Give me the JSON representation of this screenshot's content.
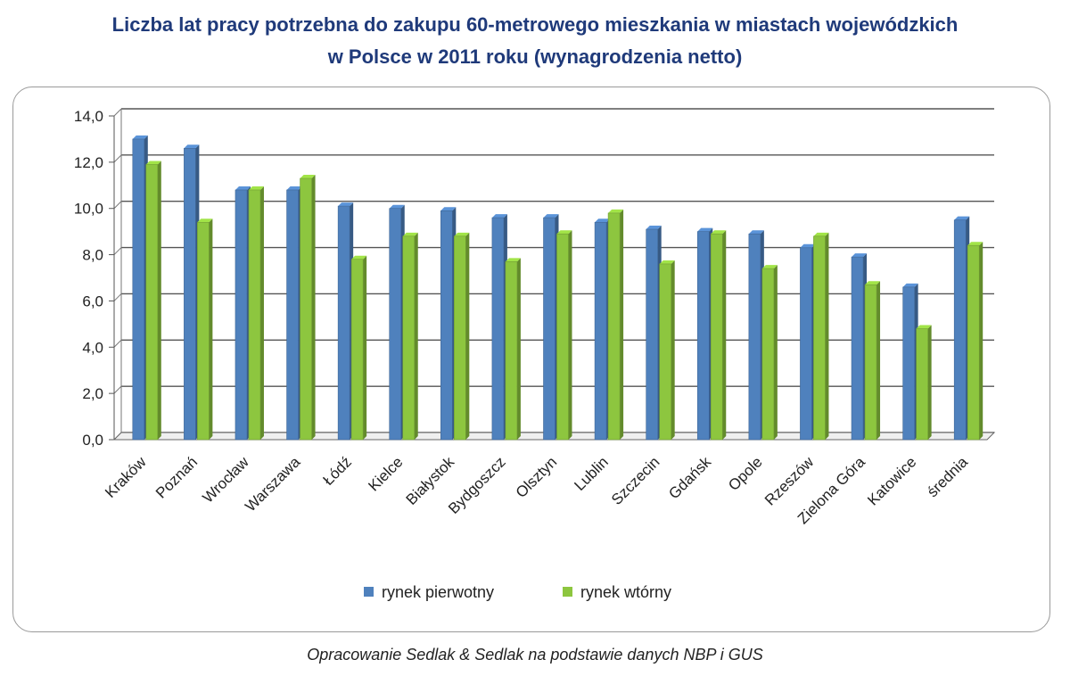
{
  "title_line1": "Liczba lat pracy potrzebna do zakupu 60-metrowego mieszkania w miastach wojewódzkich",
  "title_line2": "w Polsce w 2011 roku (wynagrodzenia netto)",
  "source": "Opracowanie Sedlak & Sedlak na podstawie danych NBP i GUS",
  "colors": {
    "primary": "#4f81bd",
    "secondary": "#8dc63f",
    "title": "#1f3a7a"
  },
  "chart_data": {
    "type": "bar",
    "title": "Liczba lat pracy potrzebna do zakupu 60-metrowego mieszkania w miastach wojewódzkich w Polsce w 2011 roku (wynagrodzenia netto)",
    "categories": [
      "Kraków",
      "Poznań",
      "Wrocław",
      "Warszawa",
      "Łódź",
      "Kielce",
      "Białystok",
      "Bydgoszcz",
      "Olsztyn",
      "Lublin",
      "Szczecin",
      "Gdańsk",
      "Opole",
      "Rzeszów",
      "Zielona Góra",
      "Katowice",
      "średnia"
    ],
    "series": [
      {
        "name": "rynek pierwotny",
        "values": [
          13.0,
          12.6,
          10.8,
          10.8,
          10.1,
          10.0,
          9.9,
          9.6,
          9.6,
          9.4,
          9.1,
          9.0,
          8.9,
          8.3,
          7.9,
          6.6,
          9.5
        ]
      },
      {
        "name": "rynek wtórny",
        "values": [
          11.9,
          9.4,
          10.8,
          11.3,
          7.8,
          8.8,
          8.8,
          7.7,
          8.9,
          9.8,
          7.6,
          8.9,
          7.4,
          8.8,
          6.7,
          4.8,
          8.4
        ]
      }
    ],
    "yticks": [
      "0,0",
      "2,0",
      "4,0",
      "6,0",
      "8,0",
      "10,0",
      "12,0",
      "14,0"
    ],
    "ylim": [
      0,
      14
    ],
    "grid": true,
    "legend": "bottom"
  }
}
